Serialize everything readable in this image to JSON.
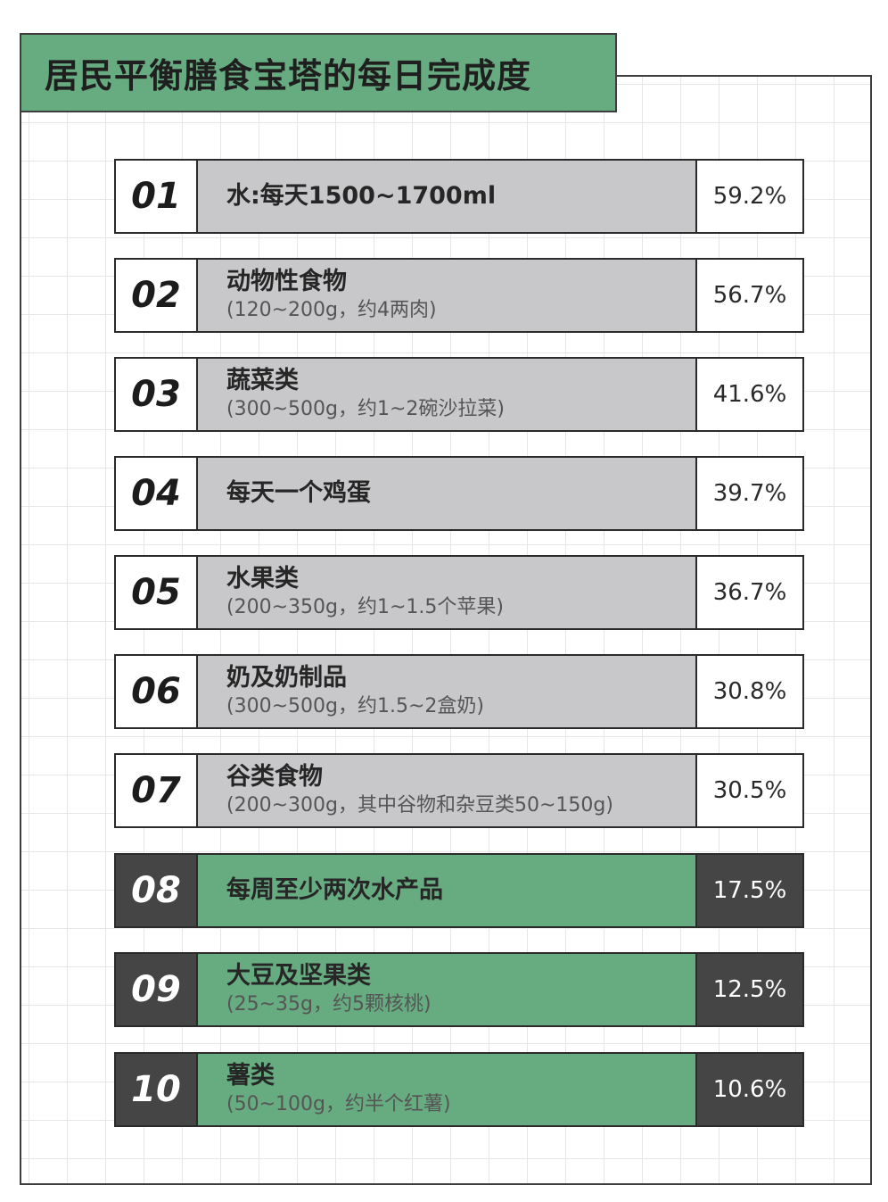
{
  "title": "居民平衡膳食宝塔的每日完成度",
  "items": [
    {
      "num": "01",
      "label": "水:每天1500~1700ml",
      "sub": "",
      "pct": "59.2%"
    },
    {
      "num": "02",
      "label": "动物性食物",
      "sub": "(120~200g，约4两肉)",
      "pct": "56.7%"
    },
    {
      "num": "03",
      "label": "蔬菜类",
      "sub": "(300~500g，约1~2碗沙拉菜)",
      "pct": "41.6%"
    },
    {
      "num": "04",
      "label": "每天一个鸡蛋",
      "sub": "",
      "pct": "39.7%"
    },
    {
      "num": "05",
      "label": "水果类",
      "sub": "(200~350g，约1~1.5个苹果)",
      "pct": "36.7%"
    },
    {
      "num": "06",
      "label": "奶及奶制品",
      "sub": "(300~500g，约1.5~2盒奶)",
      "pct": "30.8%"
    },
    {
      "num": "07",
      "label": "谷类食物",
      "sub": "(200~300g，其中谷物和杂豆类50~150g)",
      "pct": "30.5%"
    },
    {
      "num": "08",
      "label": "每周至少两次水产品",
      "sub": "",
      "pct": "17.5%"
    },
    {
      "num": "09",
      "label": "大豆及坚果类",
      "sub": "(25~35g，约5颗核桃)",
      "pct": "12.5%"
    },
    {
      "num": "10",
      "label": "薯类",
      "sub": "(50~100g，约半个红薯)",
      "pct": "10.6%"
    }
  ],
  "colors": {
    "accent_green": "#67ab81",
    "dark": "#454545",
    "neutral_gray": "#c8c8ca"
  }
}
